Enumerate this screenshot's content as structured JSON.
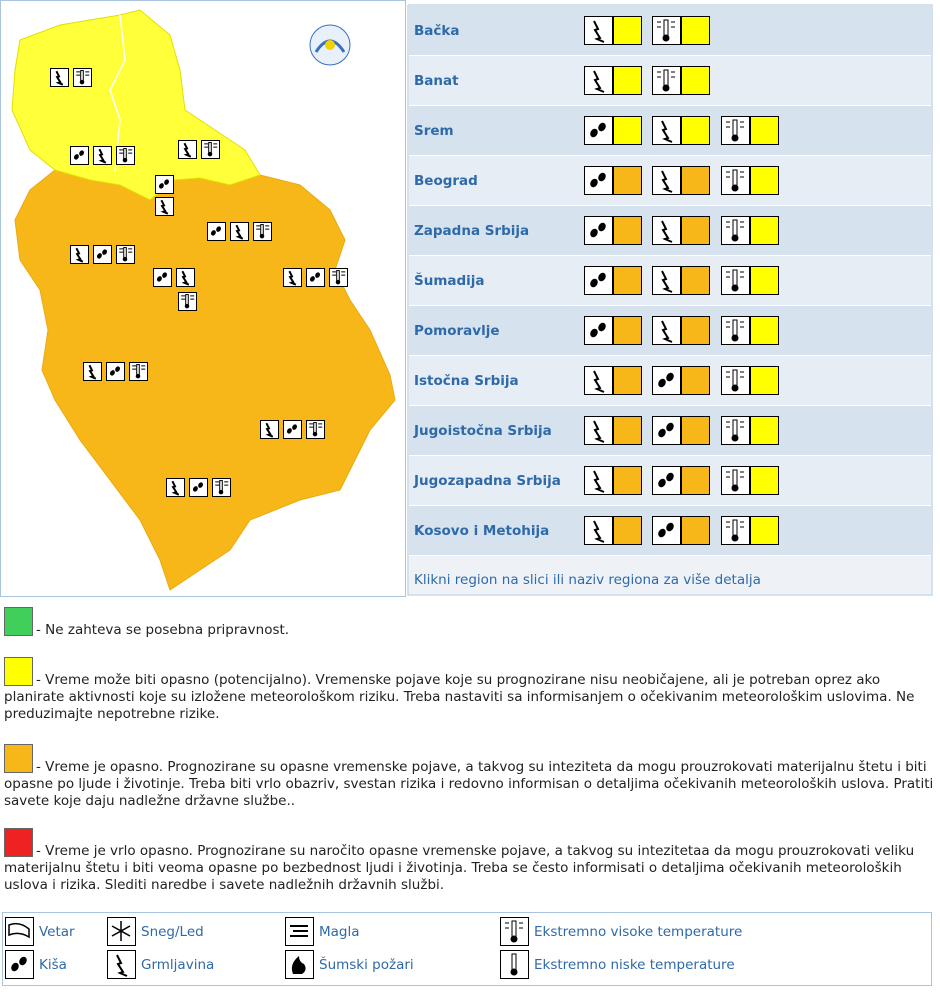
{
  "regions": [
    {
      "name": "Bačka",
      "warnings": [
        {
          "icon": "storm",
          "color": "#ffff00"
        },
        {
          "icon": "heat",
          "color": "#ffff00"
        }
      ]
    },
    {
      "name": "Banat",
      "warnings": [
        {
          "icon": "storm",
          "color": "#ffff00"
        },
        {
          "icon": "heat",
          "color": "#ffff00"
        }
      ]
    },
    {
      "name": "Srem",
      "warnings": [
        {
          "icon": "rain",
          "color": "#ffff00"
        },
        {
          "icon": "storm",
          "color": "#ffff00"
        },
        {
          "icon": "heat",
          "color": "#ffff00"
        }
      ]
    },
    {
      "name": "Beograd",
      "warnings": [
        {
          "icon": "rain",
          "color": "#f7b718"
        },
        {
          "icon": "storm",
          "color": "#f7b718"
        },
        {
          "icon": "heat",
          "color": "#ffff00"
        }
      ]
    },
    {
      "name": "Zapadna Srbija",
      "warnings": [
        {
          "icon": "rain",
          "color": "#f7b718"
        },
        {
          "icon": "storm",
          "color": "#f7b718"
        },
        {
          "icon": "heat",
          "color": "#ffff00"
        }
      ]
    },
    {
      "name": "Šumadija",
      "warnings": [
        {
          "icon": "rain",
          "color": "#f7b718"
        },
        {
          "icon": "storm",
          "color": "#f7b718"
        },
        {
          "icon": "heat",
          "color": "#ffff00"
        }
      ]
    },
    {
      "name": "Pomoravlje",
      "warnings": [
        {
          "icon": "rain",
          "color": "#f7b718"
        },
        {
          "icon": "storm",
          "color": "#f7b718"
        },
        {
          "icon": "heat",
          "color": "#ffff00"
        }
      ]
    },
    {
      "name": "Istočna Srbija",
      "warnings": [
        {
          "icon": "storm",
          "color": "#f7b718"
        },
        {
          "icon": "rain",
          "color": "#f7b718"
        },
        {
          "icon": "heat",
          "color": "#ffff00"
        }
      ]
    },
    {
      "name": "Jugoistočna Srbija",
      "warnings": [
        {
          "icon": "storm",
          "color": "#f7b718"
        },
        {
          "icon": "rain",
          "color": "#f7b718"
        },
        {
          "icon": "heat",
          "color": "#ffff00"
        }
      ]
    },
    {
      "name": "Jugozapadna Srbija",
      "warnings": [
        {
          "icon": "storm",
          "color": "#f7b718"
        },
        {
          "icon": "rain",
          "color": "#f7b718"
        },
        {
          "icon": "heat",
          "color": "#ffff00"
        }
      ]
    },
    {
      "name": "Kosovo i Metohija",
      "warnings": [
        {
          "icon": "storm",
          "color": "#f7b718"
        },
        {
          "icon": "rain",
          "color": "#f7b718"
        },
        {
          "icon": "heat",
          "color": "#ffff00"
        }
      ]
    }
  ],
  "hint": "Klikni region na slici ili naziv regiona za više detalja",
  "levels": [
    {
      "color": "#3fcf5a",
      "text": "- Ne zahteva se posebna pripravnost."
    },
    {
      "color": "#ffff00",
      "text": "- Vreme može biti opasno (potencijalno). Vremenske pojave koje su prognozirane nisu neobičajene, ali je potreban oprez ako planirate aktivnosti koje su izložene meteorološkom riziku. Treba nastaviti sa informisanjem o očekivanim meteorološkim uslovima. Ne preduzimajte nepotrebne rizike."
    },
    {
      "color": "#f7b718",
      "text": "- Vreme je opasno. Prognozirane su opasne vremenske pojave, a takvog su inteziteta da mogu prouzrokovati materijalnu štetu i biti opasne po ljude i životinje. Treba biti vrlo obazriv, svestan rizika i redovno informisan o detaljima očekivanih meteoroloških uslova. Pratiti savete koje daju nadležne državne službe.."
    },
    {
      "color": "#ee2222",
      "text": "- Vreme je vrlo opasno. Prognozirane su naročito opasne vremenske pojave, a takvog su intezitetaa da mogu prouzrokovati veliku materijalnu štetu i biti veoma opasne po bezbednost ljudi i životinja. Treba se često informisati o detaljima očekivanih meteoroloških uslova i rizika. Slediti naredbe i savete nadležnih državnih službi."
    }
  ],
  "icon_legend": [
    [
      "Vetar",
      "Sneg/Led",
      "Magla",
      "Ekstremno visoke temperature"
    ],
    [
      "Kiša",
      "Grmljavina",
      "Šumski požari",
      "Ekstremno niske temperature"
    ]
  ]
}
